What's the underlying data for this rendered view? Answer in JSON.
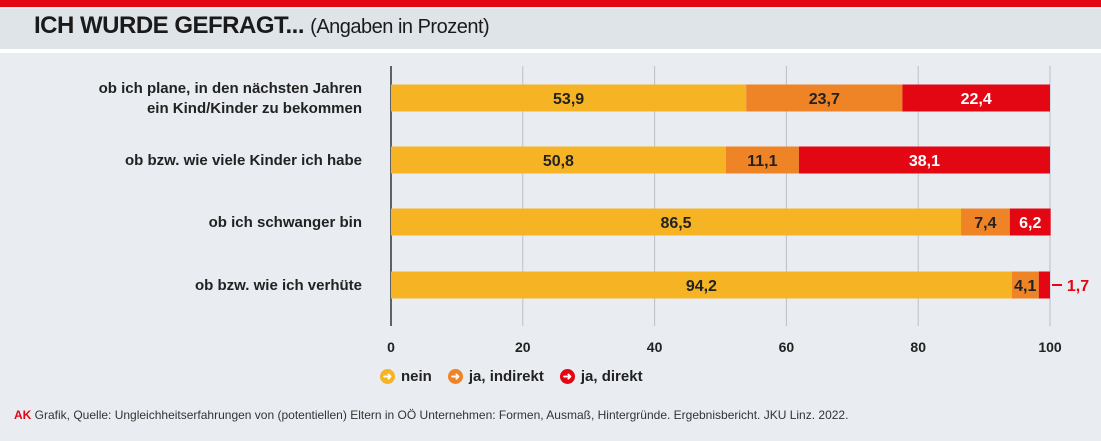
{
  "title": "ICH WURDE GEFRAGT...",
  "subtitle": "(Angaben in Prozent)",
  "chart_data": {
    "type": "bar",
    "orientation": "horizontal",
    "stacked": true,
    "categories": [
      [
        "ob ich plane, in den nächsten Jahren",
        "ein  Kind/Kinder zu bekommen"
      ],
      [
        "ob bzw. wie viele Kinder ich habe"
      ],
      [
        "ob ich schwanger bin"
      ],
      [
        "ob bzw.  wie ich verhüte"
      ]
    ],
    "series": [
      {
        "name": "nein",
        "color": "#f6b425",
        "values": [
          53.9,
          50.8,
          86.5,
          94.2
        ],
        "labels": [
          "53,9",
          "50,8",
          "86,5",
          "94,2"
        ]
      },
      {
        "name": "ja, indirekt",
        "color": "#ee8426",
        "values": [
          23.7,
          11.1,
          7.4,
          4.1
        ],
        "labels": [
          "23,7",
          "11,1",
          "7,4",
          "4,1"
        ]
      },
      {
        "name": "ja, direkt",
        "color": "#e30613",
        "values": [
          22.4,
          38.1,
          6.2,
          1.7
        ],
        "labels": [
          "22,4",
          "38,1",
          "6,2",
          "1,7"
        ]
      }
    ],
    "xlim": [
      0,
      100
    ],
    "xticks": [
      "0",
      "20",
      "40",
      "60",
      "80",
      "100"
    ],
    "grid": true,
    "legend": "bottom"
  },
  "legend": [
    {
      "label": "nein",
      "color": "#f6b425"
    },
    {
      "label": "ja, indirekt",
      "color": "#ee8426"
    },
    {
      "label": "ja, direkt",
      "color": "#e30613"
    }
  ],
  "source": {
    "brand": "AK",
    "text": " Grafik, Quelle: Ungleichheitserfahrungen von (potentiellen) Eltern in OÖ Unternehmen: Formen, Ausmaß, Hintergründe. Ergebnisbericht. JKU Linz. 2022."
  }
}
